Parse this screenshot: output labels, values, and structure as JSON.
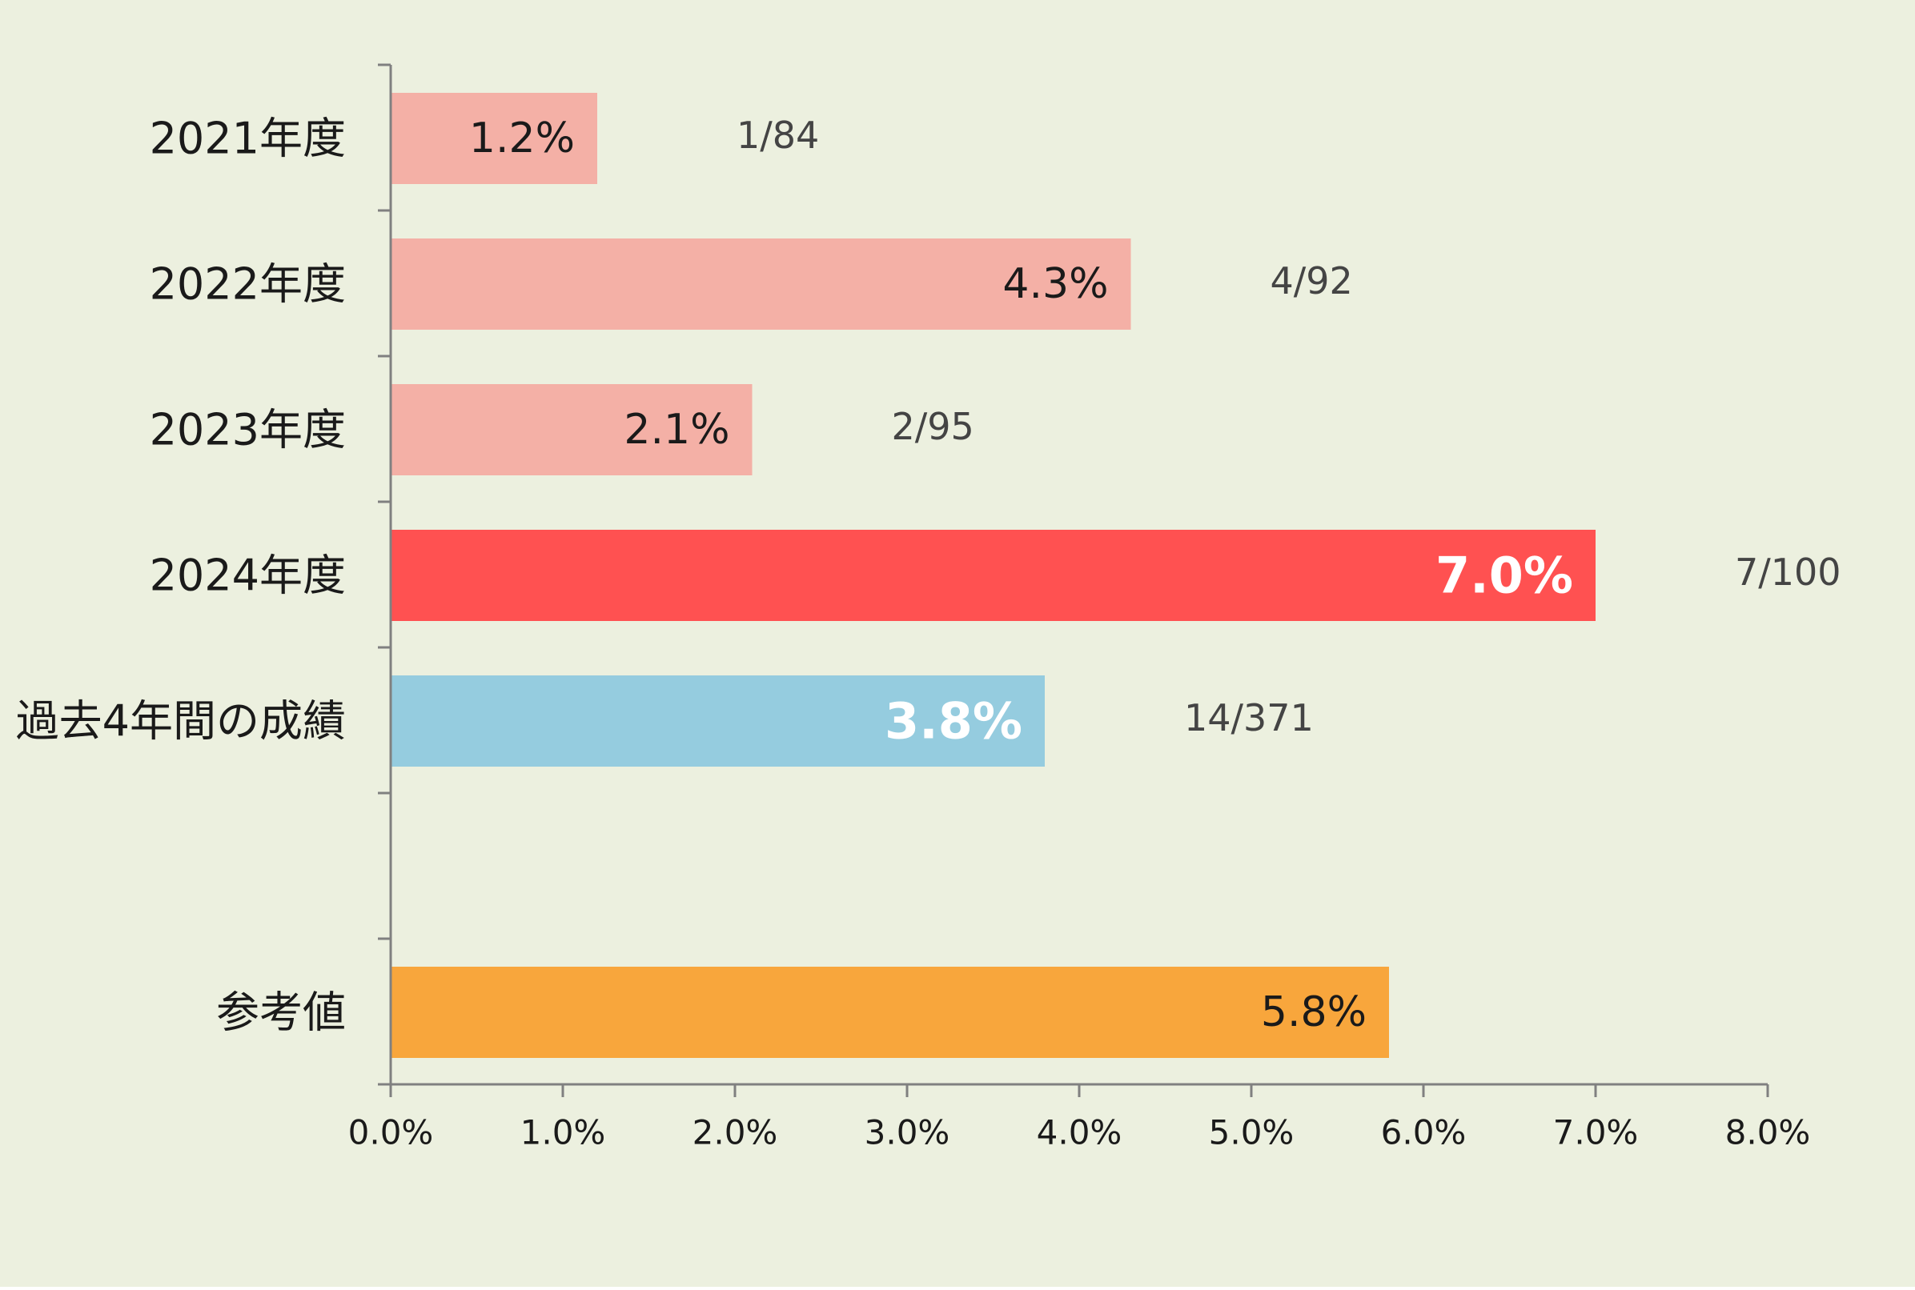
{
  "colors": {
    "background": "#ECF0DF",
    "axis": "#808080",
    "bar_light": "#F4B0A6",
    "bar_highlight": "#FF5151",
    "bar_aggregate": "#95CCDF",
    "bar_reference": "#F8A63C",
    "value_text_dark": "#1a1a1a",
    "value_text_light": "#ffffff"
  },
  "chart_data": {
    "type": "bar",
    "orientation": "horizontal",
    "categories": [
      "2021年度",
      "2022年度",
      "2023年度",
      "2024年度",
      "過去4年間の成績",
      "",
      "参考値"
    ],
    "values": [
      1.2,
      4.3,
      2.1,
      7.0,
      3.8,
      null,
      5.8
    ],
    "value_labels": [
      "1.2%",
      "4.3%",
      "2.1%",
      "7.0%",
      "3.8%",
      "",
      "5.8%"
    ],
    "fractions": [
      "1/84",
      "4/92",
      "2/95",
      "7/100",
      "14/371",
      "",
      ""
    ],
    "bar_colors": [
      "#F4B0A6",
      "#F4B0A6",
      "#F4B0A6",
      "#FF5151",
      "#95CCDF",
      "",
      "#F8A63C"
    ],
    "value_label_emphasis": [
      false,
      false,
      false,
      true,
      true,
      false,
      false
    ],
    "xlim": [
      0,
      8
    ],
    "x_ticks": [
      0,
      1,
      2,
      3,
      4,
      5,
      6,
      7,
      8
    ],
    "x_tick_labels": [
      "0.0%",
      "1.0%",
      "2.0%",
      "3.0%",
      "4.0%",
      "5.0%",
      "6.0%",
      "7.0%",
      "8.0%"
    ],
    "grid": false,
    "legend": "none",
    "title": "",
    "xlabel": "",
    "ylabel": ""
  }
}
